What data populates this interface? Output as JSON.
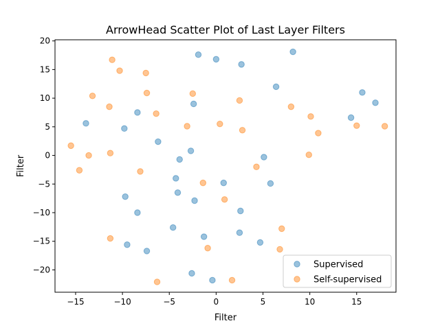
{
  "chart_data": {
    "type": "scatter",
    "title": "ArrowHead Scatter Plot of Last Layer Filters",
    "xlabel": "Filter",
    "ylabel": "Filter",
    "xlim": [
      -17.2,
      19.2
    ],
    "ylim": [
      -23.9,
      20.2
    ],
    "xticks": [
      -15,
      -10,
      -5,
      0,
      5,
      10,
      15
    ],
    "yticks": [
      -20,
      -15,
      -10,
      -5,
      0,
      5,
      10,
      15,
      20
    ],
    "grid": false,
    "legend_position": "lower right",
    "series": [
      {
        "name": "Supervised",
        "color": "#1f77b4",
        "points": [
          [
            -1.9,
            17.6
          ],
          [
            0.0,
            16.8
          ],
          [
            2.7,
            15.9
          ],
          [
            8.2,
            18.1
          ],
          [
            6.4,
            12.0
          ],
          [
            15.6,
            11.0
          ],
          [
            17.0,
            9.2
          ],
          [
            14.4,
            6.6
          ],
          [
            -8.4,
            7.5
          ],
          [
            -2.4,
            9.0
          ],
          [
            -13.9,
            5.6
          ],
          [
            -9.8,
            4.7
          ],
          [
            -6.2,
            2.4
          ],
          [
            -2.7,
            0.8
          ],
          [
            -3.9,
            -0.7
          ],
          [
            5.1,
            -0.3
          ],
          [
            -4.3,
            -4.0
          ],
          [
            0.8,
            -4.8
          ],
          [
            5.8,
            -4.9
          ],
          [
            -4.1,
            -6.5
          ],
          [
            -2.3,
            -7.9
          ],
          [
            -9.7,
            -7.2
          ],
          [
            -8.4,
            -10.0
          ],
          [
            2.6,
            -9.7
          ],
          [
            -4.6,
            -12.6
          ],
          [
            -1.3,
            -14.2
          ],
          [
            2.5,
            -13.5
          ],
          [
            4.7,
            -15.2
          ],
          [
            -9.5,
            -15.6
          ],
          [
            -7.4,
            -16.7
          ],
          [
            -2.6,
            -20.6
          ],
          [
            -0.4,
            -21.8
          ]
        ]
      },
      {
        "name": "Self-supervised",
        "color": "#ff7f0e",
        "points": [
          [
            -11.1,
            16.7
          ],
          [
            -10.3,
            14.8
          ],
          [
            -7.5,
            14.4
          ],
          [
            -13.2,
            10.4
          ],
          [
            -7.4,
            10.9
          ],
          [
            -2.5,
            10.8
          ],
          [
            2.5,
            9.6
          ],
          [
            -11.4,
            8.5
          ],
          [
            -6.4,
            7.3
          ],
          [
            8.0,
            8.5
          ],
          [
            10.1,
            6.8
          ],
          [
            -3.1,
            5.1
          ],
          [
            0.4,
            5.5
          ],
          [
            2.8,
            4.4
          ],
          [
            10.9,
            3.9
          ],
          [
            15.0,
            5.2
          ],
          [
            18.0,
            5.1
          ],
          [
            -15.5,
            1.7
          ],
          [
            -13.6,
            0.0
          ],
          [
            -11.3,
            0.4
          ],
          [
            9.9,
            0.1
          ],
          [
            -14.6,
            -2.6
          ],
          [
            -8.1,
            -2.8
          ],
          [
            4.3,
            -2.0
          ],
          [
            -1.4,
            -4.8
          ],
          [
            0.9,
            -7.7
          ],
          [
            7.0,
            -12.8
          ],
          [
            -11.3,
            -14.5
          ],
          [
            -0.9,
            -16.2
          ],
          [
            6.8,
            -16.4
          ],
          [
            -6.3,
            -22.1
          ],
          [
            1.7,
            -21.8
          ]
        ]
      }
    ]
  }
}
